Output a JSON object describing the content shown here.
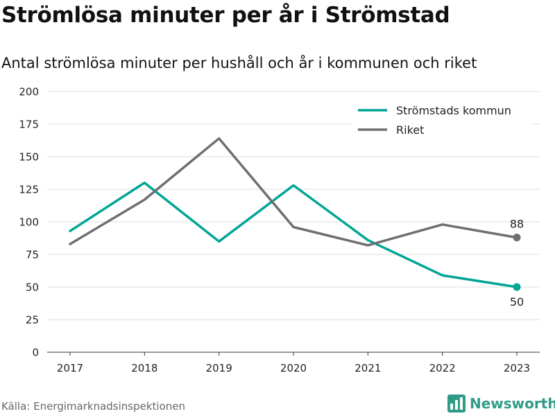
{
  "title": "Strömlösa minuter per år i Strömstad",
  "subtitle": "Antal strömlösa minuter per hushåll och år i kommunen och riket",
  "source": "Källa: Energimarknadsinspektionen",
  "brand": {
    "name": "Newsworthy",
    "icon": "bar-chart-logo-icon",
    "color": "#2e9b86"
  },
  "chart_data": {
    "type": "line",
    "title": "Strömlösa minuter per år i Strömstad",
    "subtitle": "Antal strömlösa minuter per hushåll och år i kommunen och riket",
    "xlabel": "",
    "ylabel": "",
    "x": [
      "2017",
      "2018",
      "2019",
      "2020",
      "2021",
      "2022",
      "2023"
    ],
    "ylim": [
      0,
      200
    ],
    "yticks": [
      0,
      25,
      50,
      75,
      100,
      125,
      150,
      175,
      200
    ],
    "grid": true,
    "legend_position": "top-right",
    "series": [
      {
        "name": "Strömstads kommun",
        "color": "#00a596",
        "values": [
          93,
          130,
          85,
          128,
          86,
          59,
          50
        ],
        "end_label": "50",
        "end_label_position": "below"
      },
      {
        "name": "Riket",
        "color": "#6e6e73",
        "values": [
          83,
          117,
          164,
          96,
          82,
          98,
          88
        ],
        "end_label": "88",
        "end_label_position": "above"
      }
    ]
  }
}
